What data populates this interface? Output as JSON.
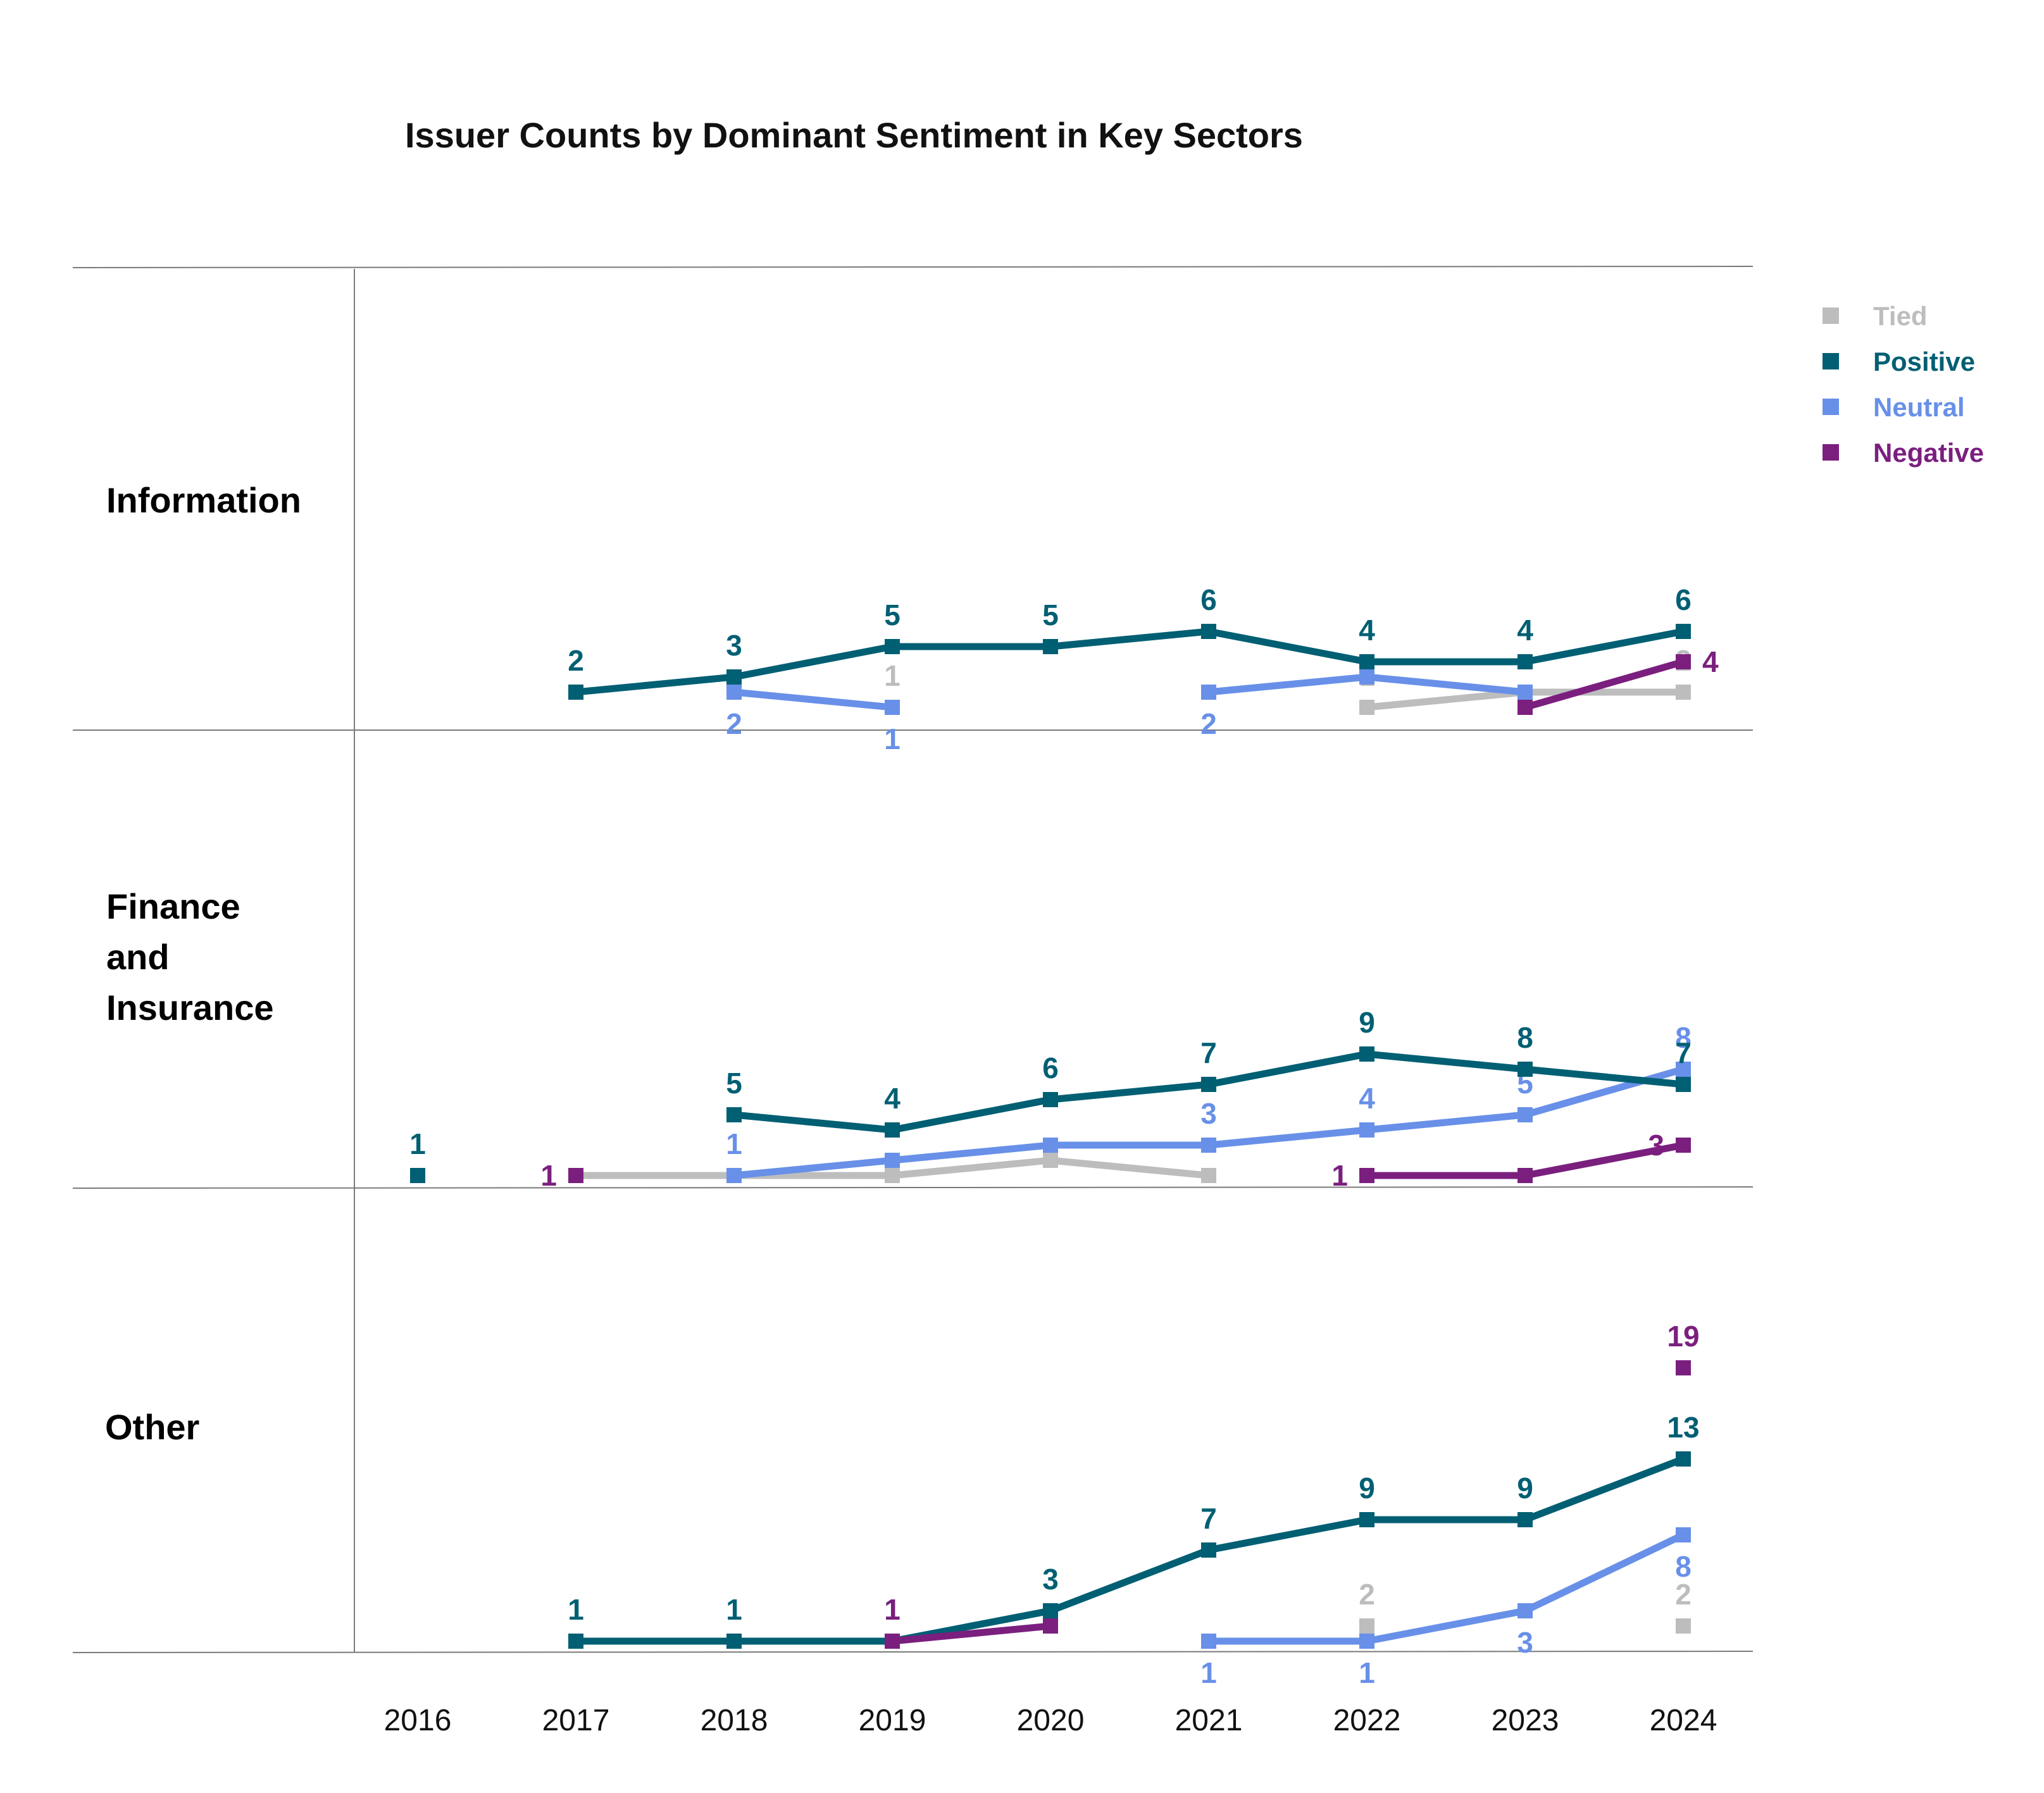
{
  "chart_data": {
    "type": "line",
    "title": "Issuer Counts by Dominant Sentiment in Key Sectors",
    "x": [
      "2016",
      "2017",
      "2018",
      "2019",
      "2020",
      "2021",
      "2022",
      "2023",
      "2024"
    ],
    "legend": [
      {
        "name": "Tied",
        "color": "#bdbdbd"
      },
      {
        "name": "Positive",
        "color": "#005f73"
      },
      {
        "name": "Neutral",
        "color": "#6890e8"
      },
      {
        "name": "Negative",
        "color": "#7b1f7f"
      }
    ],
    "panels": [
      {
        "label": "Information",
        "series": [
          {
            "name": "Positive",
            "values": [
              null,
              2,
              3,
              5,
              5,
              6,
              4,
              4,
              6
            ],
            "labels": [
              "",
              "2",
              "3",
              "5",
              "5",
              "6",
              "4",
              "4",
              "6"
            ]
          },
          {
            "name": "Neutral",
            "values": [
              null,
              null,
              2,
              1,
              null,
              2,
              3,
              2,
              null
            ],
            "labels": [
              "",
              "",
              "2",
              "1",
              "",
              "2",
              "",
              "",
              ""
            ]
          },
          {
            "name": "Tied",
            "values": [
              null,
              null,
              null,
              1,
              null,
              null,
              1,
              2,
              2
            ],
            "labels": [
              "",
              "",
              "",
              "1",
              "",
              "",
              "1",
              "",
              "2"
            ]
          },
          {
            "name": "Negative",
            "values": [
              null,
              null,
              null,
              null,
              null,
              null,
              null,
              1,
              4
            ],
            "labels": [
              "",
              "",
              "",
              "",
              "",
              "",
              "",
              "",
              "4"
            ]
          }
        ]
      },
      {
        "label": "Finance and Insurance",
        "series": [
          {
            "name": "Positive",
            "values": [
              1,
              null,
              5,
              4,
              6,
              7,
              9,
              8,
              7
            ],
            "labels": [
              "1",
              "",
              "5",
              "4",
              "6",
              "7",
              "9",
              "8",
              "7"
            ]
          },
          {
            "name": "Neutral",
            "values": [
              null,
              null,
              1,
              2,
              3,
              3,
              4,
              5,
              8
            ],
            "labels": [
              "",
              "",
              "1",
              "",
              "",
              "3",
              "4",
              "5",
              "8"
            ]
          },
          {
            "name": "Tied",
            "values": [
              null,
              1,
              1,
              1,
              2,
              1,
              null,
              null,
              null
            ],
            "labels": [
              "",
              "",
              "",
              "",
              "",
              "",
              "",
              "",
              ""
            ]
          },
          {
            "name": "Negative",
            "values": [
              null,
              1,
              null,
              null,
              null,
              null,
              1,
              1,
              3
            ],
            "labels": [
              "",
              "1",
              "",
              "",
              "",
              "",
              "1",
              "",
              "3"
            ]
          }
        ]
      },
      {
        "label": "Other",
        "series": [
          {
            "name": "Positive",
            "values": [
              null,
              1,
              1,
              1,
              3,
              7,
              9,
              9,
              13
            ],
            "labels": [
              "",
              "1",
              "1",
              "1",
              "3",
              "7",
              "9",
              "9",
              "13"
            ]
          },
          {
            "name": "Neutral",
            "values": [
              null,
              null,
              null,
              null,
              null,
              1,
              1,
              3,
              8
            ],
            "labels": [
              "",
              "",
              "",
              "",
              "",
              "1",
              "1",
              "3",
              "8"
            ]
          },
          {
            "name": "Tied",
            "values": [
              null,
              null,
              null,
              null,
              null,
              null,
              2,
              null,
              2
            ],
            "labels": [
              "",
              "",
              "",
              "",
              "",
              "",
              "2",
              "",
              "2"
            ]
          },
          {
            "name": "Negative",
            "values": [
              null,
              null,
              null,
              1,
              2,
              null,
              null,
              null,
              19
            ],
            "labels": [
              "",
              "",
              "",
              "1",
              "",
              "",
              "",
              "",
              "19"
            ]
          }
        ]
      }
    ]
  }
}
